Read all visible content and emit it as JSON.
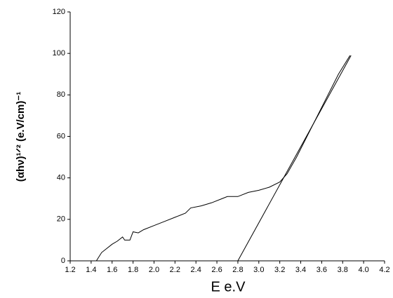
{
  "chart_data": {
    "type": "line",
    "xlabel": "E e.V",
    "ylabel": "(αhν)¹ᐟ² (e.V/cm)⁻¹",
    "xlim": [
      1.2,
      4.2
    ],
    "xticks": [
      1.2,
      1.4,
      1.6,
      1.8,
      {
        "value": 2,
        "label": "2.0"
      },
      2.2,
      2.4,
      2.6,
      2.8,
      {
        "value": 3,
        "label": "3.0"
      },
      3.2,
      3.4,
      3.6,
      3.8,
      {
        "value": 4,
        "label": "4.0"
      },
      4.2
    ],
    "ylim": [
      0,
      120
    ],
    "yticks": [
      0,
      20,
      40,
      60,
      80,
      100,
      120
    ],
    "series": [
      {
        "color": "#000000",
        "x": [
          1.45,
          1.5,
          1.55,
          1.6,
          1.65,
          1.7,
          1.72,
          1.77,
          1.8,
          1.85,
          1.9,
          2.0,
          2.1,
          2.2,
          2.3,
          2.35,
          2.45,
          2.55,
          2.65,
          2.7,
          2.8,
          2.9,
          3.0,
          3.1,
          3.2,
          3.27,
          3.36,
          3.46,
          3.56,
          3.66,
          3.76,
          3.87
        ],
        "values": [
          0,
          4,
          6,
          8,
          9.5,
          11.5,
          10,
          10,
          14,
          13.5,
          15,
          17,
          19,
          21,
          23,
          25.5,
          26.5,
          28,
          30,
          31,
          31,
          33,
          34,
          35.5,
          38,
          42,
          50,
          60,
          70,
          80,
          90,
          99
        ]
      },
      {
        "color": "#000000",
        "x": [
          2.8,
          3.88
        ],
        "values": [
          0,
          99
        ]
      }
    ]
  }
}
